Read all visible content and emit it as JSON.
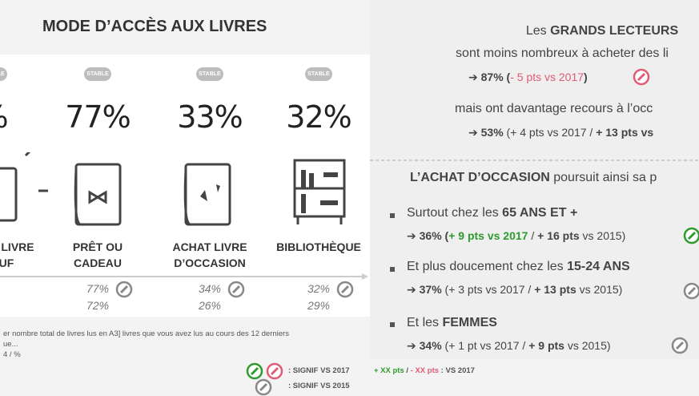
{
  "header": {
    "title": "MODE D’ACCÈS AUX LIVRES"
  },
  "columns": [
    {
      "x": -8,
      "badge": "STABLE",
      "value": "%",
      "label": [
        "LIVRE",
        "UF"
      ],
      "history": []
    },
    {
      "x": 122,
      "badge": "STABLE",
      "value": "77%",
      "label": [
        "PRÊT OU",
        "CADEAU"
      ],
      "history": [
        "77%",
        "72%"
      ]
    },
    {
      "x": 262,
      "badge": "STABLE",
      "value": "33%",
      "label": [
        "ACHAT LIVRE",
        "D’OCCASION"
      ],
      "history": [
        "34%",
        "26%"
      ]
    },
    {
      "x": 398,
      "badge": "STABLE",
      "value": "32%",
      "label": [
        "BIBLIOTHÈQUE"
      ],
      "history": [
        "32%",
        "29%"
      ]
    }
  ],
  "footnote": [
    "er nombre total de livres lus en A3] livres que vous avez lus au cours des 12 derniers",
    "ue...",
    "4 / %"
  ],
  "legend": [
    {
      "parts": [
        {
          "text": ": SIGNIF VS 2017",
          "style": "bold"
        }
      ]
    },
    {
      "parts": [
        {
          "text": "+ XX pts",
          "style": "bold-green"
        },
        {
          "text": " / ",
          "style": "bold"
        },
        {
          "text": "- XX pts",
          "style": "bold-red"
        },
        {
          "text": " : VS 2017",
          "style": "bold"
        }
      ]
    },
    {
      "parts": [
        {
          "text": ": SIGNIF VS 2015",
          "style": "bold"
        }
      ]
    }
  ],
  "right": [
    {
      "parts": [
        {
          "text": "Les "
        },
        {
          "text": "GRANDS LECTEURS",
          "style": "bold"
        }
      ]
    },
    {
      "parts": [
        {
          "text": "sont moins nombreux à acheter des li"
        }
      ]
    },
    {
      "parts": [
        {
          "text": "➔ 87% (",
          "style": "bold"
        },
        {
          "text": "- 5 pts vs 2017",
          "style": "red"
        },
        {
          "text": ")",
          "style": "bold"
        }
      ]
    },
    {
      "parts": [
        {
          "text": "mais ont davantage recours à l’occ"
        }
      ]
    },
    {
      "parts": [
        {
          "text": "➔ 53%",
          "style": "bold"
        },
        {
          "text": " (+ 4 pts vs 2017 / "
        },
        {
          "text": "+ 13 pts vs",
          "style": "bold"
        }
      ]
    },
    {
      "parts": [
        {
          "text": "L’ACHAT D’OCCASION",
          "style": "bold"
        },
        {
          "text": " poursuit ainsi sa p"
        }
      ]
    },
    {
      "parts": [
        {
          "text": "Surtout chez les "
        },
        {
          "text": "65 ANS ET +",
          "style": "bold"
        }
      ]
    },
    {
      "parts": [
        {
          "text": "➔ 36% (",
          "style": "bold"
        },
        {
          "text": "+ 9 pts vs 2017",
          "style": "bold-green"
        },
        {
          "text": " / "
        },
        {
          "text": "+ 16 pts",
          "style": "bold"
        },
        {
          "text": " vs 2015)"
        }
      ]
    },
    {
      "parts": [
        {
          "text": "Et plus doucement chez les "
        },
        {
          "text": "15-24 ANS",
          "style": "bold"
        }
      ]
    },
    {
      "parts": [
        {
          "text": "➔ 37%",
          "style": "bold"
        },
        {
          "text": " (+ 3 pts vs 2017 / "
        },
        {
          "text": "+ 13 pts",
          "style": "bold"
        },
        {
          "text": " vs 2015)"
        }
      ]
    },
    {
      "parts": [
        {
          "text": "Et les "
        },
        {
          "text": "FEMMES",
          "style": "bold"
        }
      ]
    },
    {
      "parts": [
        {
          "text": "➔ 34%",
          "style": "bold"
        },
        {
          "text": " (+ 1 pt vs 2017 / "
        },
        {
          "text": "+ 9 pts",
          "style": "bold"
        },
        {
          "text": " vs 2015)"
        }
      ]
    }
  ]
}
